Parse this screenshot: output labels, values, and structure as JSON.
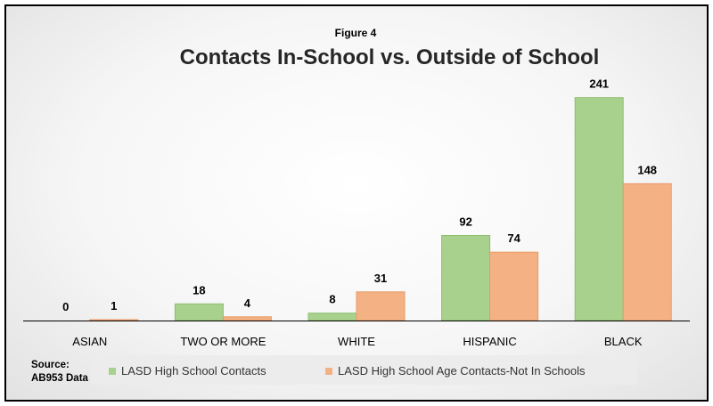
{
  "figure_label": "Figure 4",
  "source": {
    "line1": "Source:",
    "line2": "AB953 Data"
  },
  "colors": {
    "series1": "#a9d18e",
    "series1_stroke": "#8cbf6f",
    "series2": "#f4b183",
    "series2_stroke": "#e89a64",
    "axis": "#000000"
  },
  "chart_data": {
    "type": "bar",
    "title": "Contacts In-School vs. Outside of School",
    "categories": [
      "ASIAN",
      "TWO OR MORE",
      "WHITE",
      "HISPANIC",
      "BLACK"
    ],
    "series": [
      {
        "name": "LASD High School Contacts",
        "values": [
          0,
          18,
          8,
          92,
          241
        ]
      },
      {
        "name": "LASD High School Age Contacts-Not In Schools",
        "values": [
          1,
          4,
          31,
          74,
          148
        ]
      }
    ],
    "ylim": [
      0,
      260
    ],
    "grid": false,
    "legend_position": "bottom",
    "data_labels": true
  }
}
